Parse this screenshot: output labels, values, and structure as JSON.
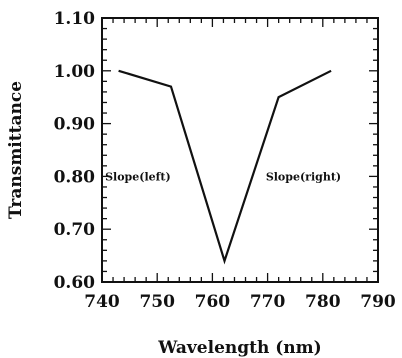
{
  "chart_data": {
    "type": "line",
    "xlabel": "Wavelength (nm)",
    "ylabel": "Transmittance",
    "xlim": [
      740,
      790
    ],
    "ylim": [
      0.6,
      1.1
    ],
    "x_ticks": [
      "740",
      "750",
      "760",
      "770",
      "780",
      "790"
    ],
    "y_ticks": [
      "0.60",
      "0.70",
      "0.80",
      "0.90",
      "1.00",
      "1.10"
    ],
    "grid": false,
    "series": [
      {
        "x": [
          743,
          752.5,
          762.2,
          772,
          781.5
        ],
        "y": [
          1.0,
          0.97,
          0.64,
          0.95,
          1.0
        ]
      }
    ],
    "annotations": [
      {
        "text": "Slope(left)",
        "x": 746.5,
        "y": 0.8
      },
      {
        "text": "Slope(right)",
        "x": 776.5,
        "y": 0.8
      }
    ]
  }
}
